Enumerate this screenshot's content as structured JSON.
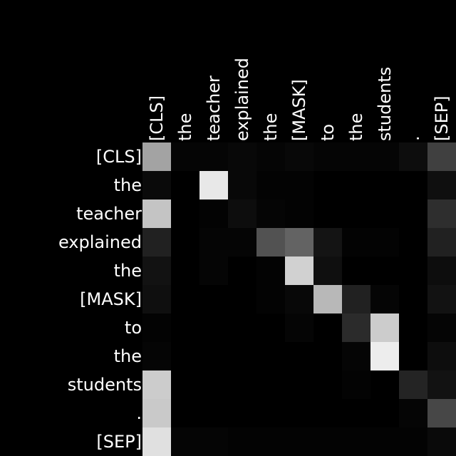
{
  "chart_data": {
    "type": "heatmap",
    "colormap": "grayscale",
    "background": "#000000",
    "label_color": "#ffffff",
    "x_tokens": [
      "[CLS]",
      "the",
      "teacher",
      "explained",
      "the",
      "[MASK]",
      "to",
      "the",
      "students",
      ".",
      "[SEP]"
    ],
    "y_tokens": [
      "[CLS]",
      "the",
      "teacher",
      "explained",
      "the",
      "[MASK]",
      "to",
      "the",
      "students",
      ".",
      "[SEP]"
    ],
    "values": [
      [
        0.64,
        0.02,
        0.02,
        0.03,
        0.02,
        0.03,
        0.02,
        0.02,
        0.02,
        0.05,
        0.25
      ],
      [
        0.04,
        0.0,
        0.91,
        0.03,
        0.01,
        0.01,
        0.0,
        0.0,
        0.0,
        0.0,
        0.06
      ],
      [
        0.77,
        0.0,
        0.01,
        0.05,
        0.02,
        0.01,
        0.0,
        0.0,
        0.0,
        0.0,
        0.18
      ],
      [
        0.13,
        0.0,
        0.02,
        0.02,
        0.32,
        0.39,
        0.08,
        0.01,
        0.01,
        0.0,
        0.13
      ],
      [
        0.07,
        0.0,
        0.02,
        0.0,
        0.01,
        0.82,
        0.06,
        0.0,
        0.0,
        0.0,
        0.05
      ],
      [
        0.06,
        0.0,
        0.0,
        0.0,
        0.01,
        0.03,
        0.72,
        0.13,
        0.02,
        0.0,
        0.07
      ],
      [
        0.01,
        0.0,
        0.0,
        0.0,
        0.0,
        0.02,
        0.0,
        0.17,
        0.8,
        0.0,
        0.02
      ],
      [
        0.02,
        0.0,
        0.0,
        0.0,
        0.0,
        0.0,
        0.0,
        0.02,
        0.93,
        0.0,
        0.05
      ],
      [
        0.8,
        0.0,
        0.0,
        0.0,
        0.0,
        0.0,
        0.0,
        0.01,
        0.0,
        0.14,
        0.07
      ],
      [
        0.79,
        0.0,
        0.0,
        0.0,
        0.0,
        0.0,
        0.0,
        0.0,
        0.0,
        0.02,
        0.28
      ],
      [
        0.88,
        0.02,
        0.02,
        0.01,
        0.01,
        0.01,
        0.01,
        0.01,
        0.01,
        0.01,
        0.04
      ]
    ]
  }
}
